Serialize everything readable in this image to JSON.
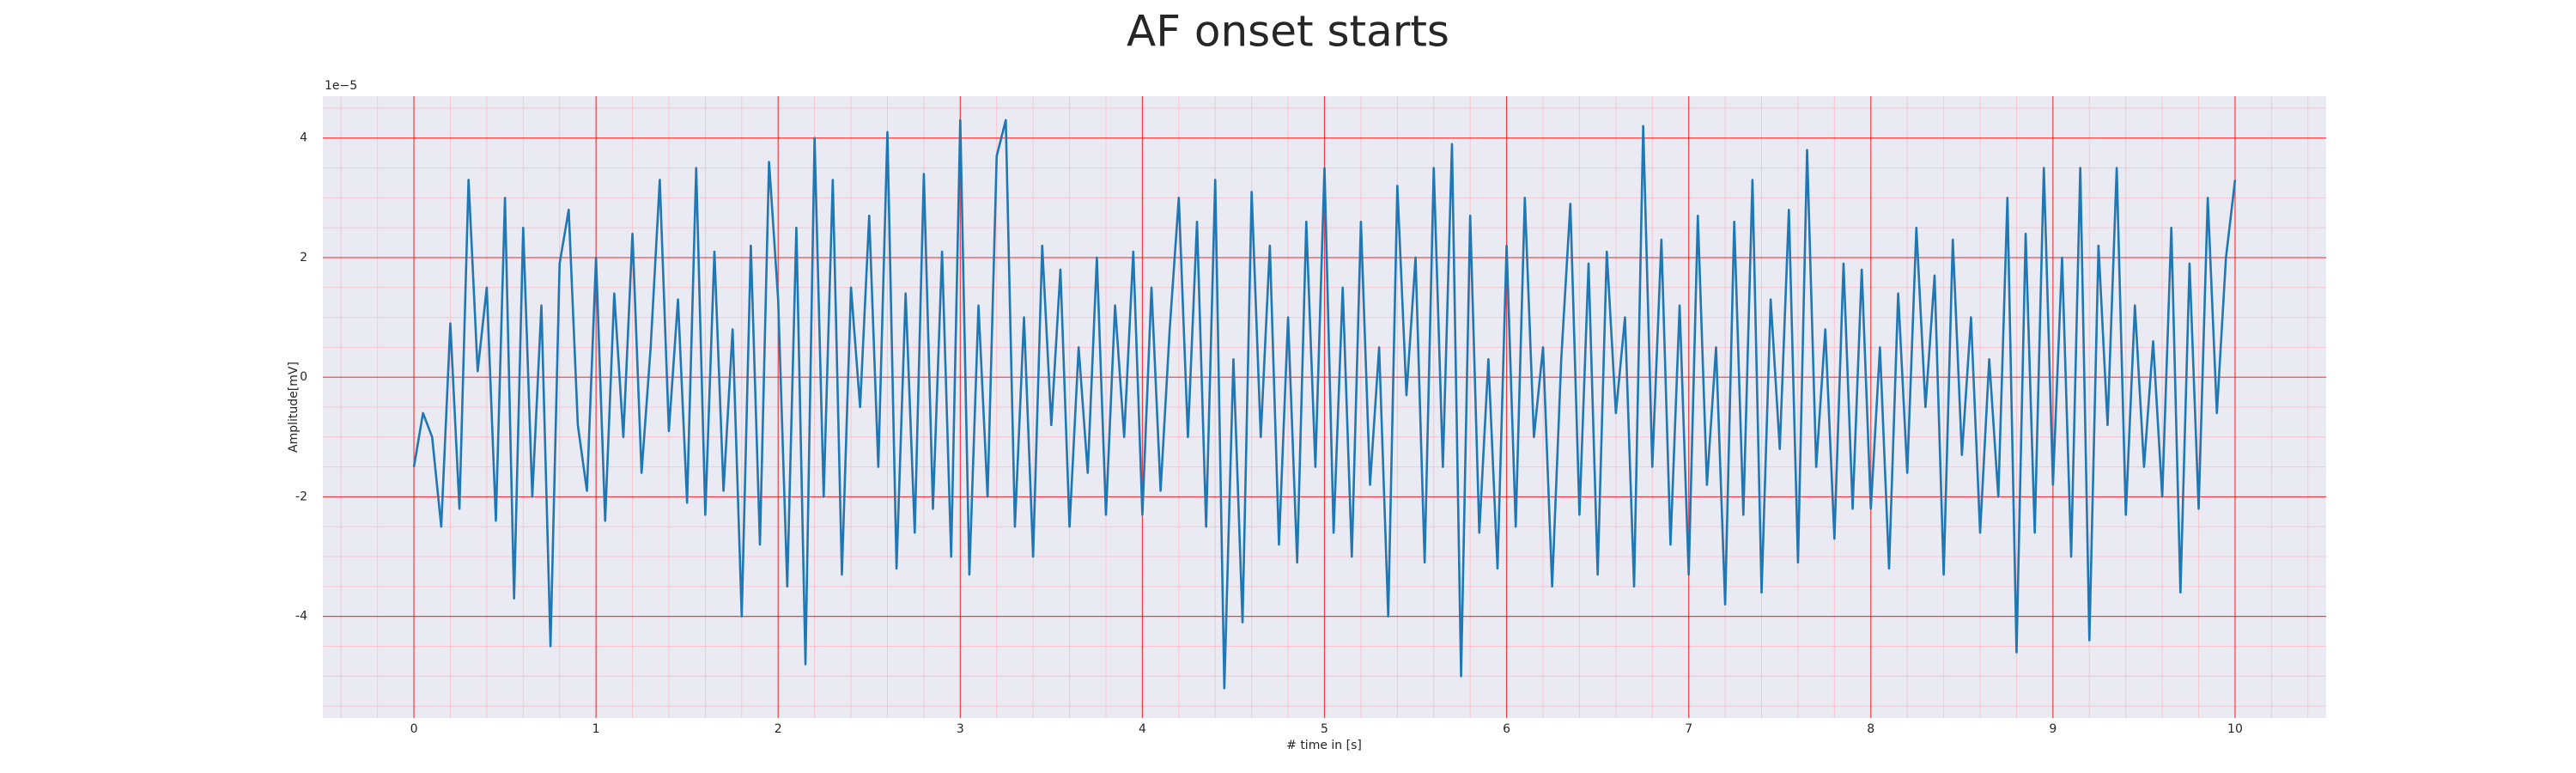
{
  "chart_data": {
    "type": "line",
    "title": "AF onset starts",
    "xlabel": "# time in [s]",
    "ylabel": "Amplitude[mV]",
    "offset_label": "1e−5",
    "color": "#1f77b4",
    "background": "#eaeaf2",
    "grid": true,
    "grid_color": "#ff0000",
    "minor_grid": true,
    "minor_grid_color": "#ffb6c1",
    "xlim": [
      -0.5,
      10.5
    ],
    "ylim": [
      -5.7,
      4.7
    ],
    "xticks": [
      0,
      1,
      2,
      3,
      4,
      5,
      6,
      7,
      8,
      9,
      10
    ],
    "yticks": [
      -4,
      -2,
      0,
      2,
      4
    ],
    "minor_xticks": [
      -0.4,
      -0.2,
      0.2,
      0.4,
      0.6,
      0.8,
      1.2,
      1.4,
      1.6,
      1.8,
      2.2,
      2.4,
      2.6,
      2.8,
      3.2,
      3.4,
      3.6,
      3.8,
      4.2,
      4.4,
      4.6,
      4.8,
      5.2,
      5.4,
      5.6,
      5.8,
      6.2,
      6.4,
      6.6,
      6.8,
      7.2,
      7.4,
      7.6,
      7.8,
      8.2,
      8.4,
      8.6,
      8.8,
      9.2,
      9.4,
      9.6,
      9.8,
      10.2,
      10.4
    ],
    "minor_yticks": [
      -5.5,
      -5,
      -4.5,
      -3.5,
      -3,
      -2.5,
      -1.5,
      -1,
      -0.5,
      0.5,
      1,
      1.5,
      2.5,
      3,
      3.5,
      4.5
    ],
    "x": [
      0,
      0.05,
      0.1,
      0.15,
      0.2,
      0.25,
      0.3,
      0.35,
      0.4,
      0.45,
      0.5,
      0.55,
      0.6,
      0.65,
      0.7,
      0.75,
      0.8,
      0.85,
      0.9,
      0.95,
      1,
      1.05,
      1.1,
      1.15,
      1.2,
      1.25,
      1.3,
      1.35,
      1.4,
      1.45,
      1.5,
      1.55,
      1.6,
      1.65,
      1.7,
      1.75,
      1.8,
      1.85,
      1.9,
      1.95,
      2,
      2.05,
      2.1,
      2.15,
      2.2,
      2.25,
      2.3,
      2.35,
      2.4,
      2.45,
      2.5,
      2.55,
      2.6,
      2.65,
      2.7,
      2.75,
      2.8,
      2.85,
      2.9,
      2.95,
      3,
      3.05,
      3.1,
      3.15,
      3.2,
      3.25,
      3.3,
      3.35,
      3.4,
      3.45,
      3.5,
      3.55,
      3.6,
      3.65,
      3.7,
      3.75,
      3.8,
      3.85,
      3.9,
      3.95,
      4,
      4.05,
      4.1,
      4.15,
      4.2,
      4.25,
      4.3,
      4.35,
      4.4,
      4.45,
      4.5,
      4.55,
      4.6,
      4.65,
      4.7,
      4.75,
      4.8,
      4.85,
      4.9,
      4.95,
      5,
      5.05,
      5.1,
      5.15,
      5.2,
      5.25,
      5.3,
      5.35,
      5.4,
      5.45,
      5.5,
      5.55,
      5.6,
      5.65,
      5.7,
      5.75,
      5.8,
      5.85,
      5.9,
      5.95,
      6,
      6.05,
      6.1,
      6.15,
      6.2,
      6.25,
      6.3,
      6.35,
      6.4,
      6.45,
      6.5,
      6.55,
      6.6,
      6.65,
      6.7,
      6.75,
      6.8,
      6.85,
      6.9,
      6.95,
      7,
      7.05,
      7.1,
      7.15,
      7.2,
      7.25,
      7.3,
      7.35,
      7.4,
      7.45,
      7.5,
      7.55,
      7.6,
      7.65,
      7.7,
      7.75,
      7.8,
      7.85,
      7.9,
      7.95,
      8,
      8.05,
      8.1,
      8.15,
      8.2,
      8.25,
      8.3,
      8.35,
      8.4,
      8.45,
      8.5,
      8.55,
      8.6,
      8.65,
      8.7,
      8.75,
      8.8,
      8.85,
      8.9,
      8.95,
      9,
      9.05,
      9.1,
      9.15,
      9.2,
      9.25,
      9.3,
      9.35,
      9.4,
      9.45,
      9.5,
      9.55,
      9.6,
      9.65,
      9.7,
      9.75,
      9.8,
      9.85,
      9.9,
      9.95,
      10
    ],
    "values": [
      -1.5,
      -0.6,
      -1.0,
      -2.5,
      0.9,
      -2.2,
      3.3,
      0.1,
      1.5,
      -2.4,
      3.0,
      -3.7,
      2.5,
      -2.0,
      1.2,
      -4.5,
      1.9,
      2.8,
      -0.8,
      -1.9,
      2.0,
      -2.4,
      1.4,
      -1.0,
      2.4,
      -1.6,
      0.5,
      3.3,
      -0.9,
      1.3,
      -2.1,
      3.5,
      -2.3,
      2.1,
      -1.9,
      0.8,
      -4.0,
      2.2,
      -2.8,
      3.6,
      1.3,
      -3.5,
      2.5,
      -4.8,
      4.0,
      -2.0,
      3.3,
      -3.3,
      1.5,
      -0.5,
      2.7,
      -1.5,
      4.1,
      -3.2,
      1.4,
      -2.6,
      3.4,
      -2.2,
      2.1,
      -3.0,
      4.3,
      -3.3,
      1.2,
      -2.0,
      3.7,
      4.3,
      -2.5,
      1.0,
      -3.0,
      2.2,
      -0.8,
      1.8,
      -2.5,
      0.5,
      -1.6,
      2.0,
      -2.3,
      1.2,
      -1.0,
      2.1,
      -2.3,
      1.5,
      -1.9,
      0.8,
      3.0,
      -1.0,
      2.6,
      -2.5,
      3.3,
      -5.2,
      0.3,
      -4.1,
      3.1,
      -1.0,
      2.2,
      -2.8,
      1.0,
      -3.1,
      2.6,
      -1.5,
      3.5,
      -2.6,
      1.5,
      -3.0,
      2.6,
      -1.8,
      0.5,
      -4.0,
      3.2,
      -0.3,
      2.0,
      -3.1,
      3.5,
      -1.5,
      3.9,
      -5.0,
      2.7,
      -2.6,
      0.3,
      -3.2,
      2.2,
      -2.5,
      3.0,
      -1.0,
      0.5,
      -3.5,
      0.3,
      2.9,
      -2.3,
      1.9,
      -3.3,
      2.1,
      -0.6,
      1.0,
      -3.5,
      4.2,
      -1.5,
      2.3,
      -2.8,
      1.2,
      -3.3,
      2.7,
      -1.8,
      0.5,
      -3.8,
      2.6,
      -2.3,
      3.3,
      -3.6,
      1.3,
      -1.2,
      2.8,
      -3.1,
      3.8,
      -1.5,
      0.8,
      -2.7,
      1.9,
      -2.2,
      1.8,
      -2.2,
      0.5,
      -3.2,
      1.4,
      -1.6,
      2.5,
      -0.5,
      1.7,
      -3.3,
      2.3,
      -1.3,
      1.0,
      -2.6,
      0.3,
      -2.0,
      3.0,
      -4.6,
      2.4,
      -2.6,
      3.5,
      -1.8,
      2.0,
      -3.0,
      3.5,
      -4.4,
      2.2,
      -0.8,
      3.5,
      -2.3,
      1.2,
      -1.5,
      0.6,
      -2.0,
      2.5,
      -3.6,
      1.9,
      -2.2,
      3.0,
      -0.6,
      2.0,
      3.3
    ]
  }
}
